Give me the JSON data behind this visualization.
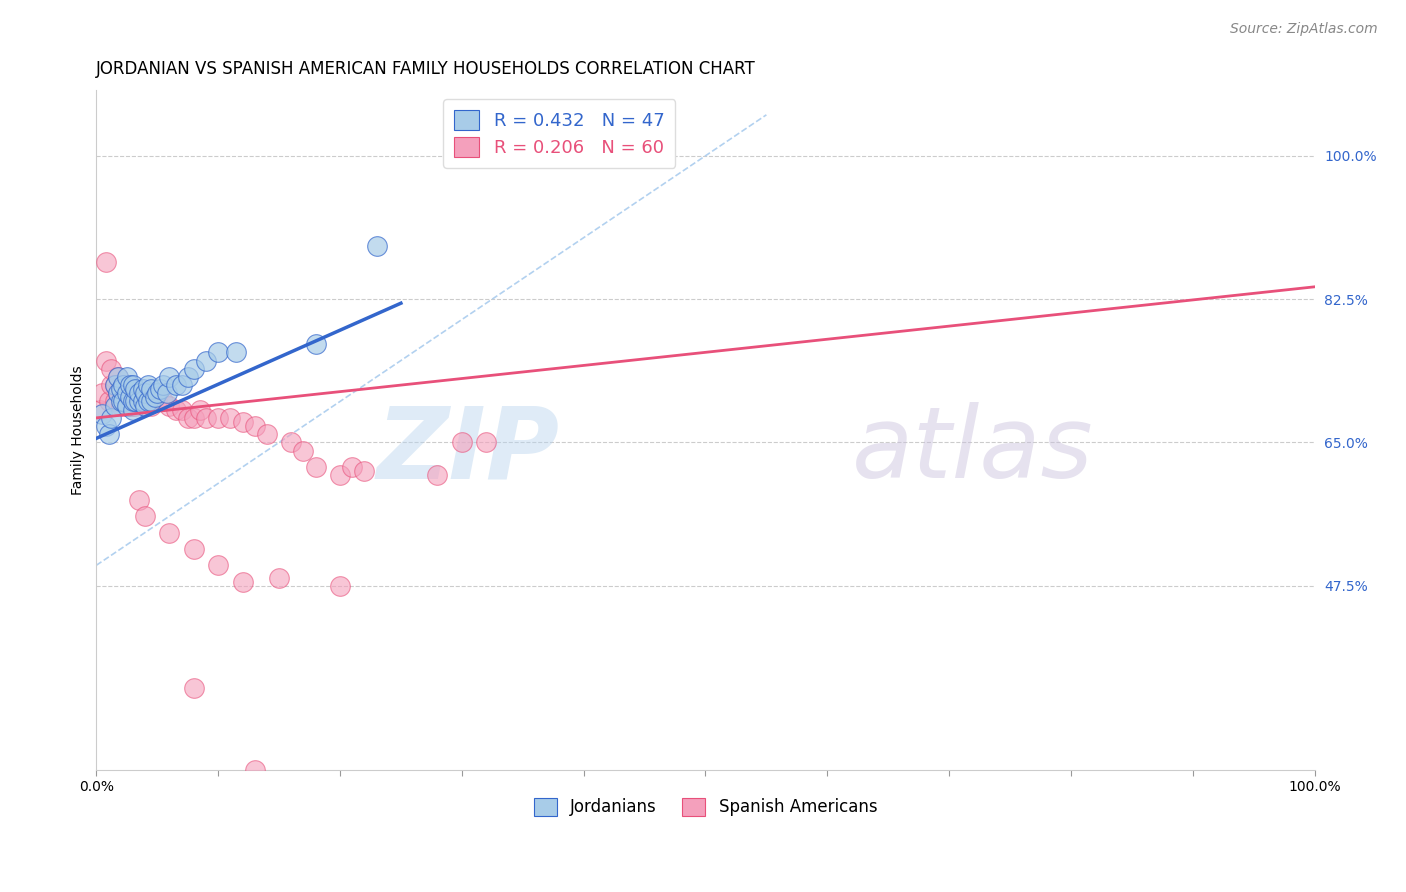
{
  "title": "JORDANIAN VS SPANISH AMERICAN FAMILY HOUSEHOLDS CORRELATION CHART",
  "source": "Source: ZipAtlas.com",
  "ylabel": "Family Households",
  "xlim": [
    0.0,
    1.0
  ],
  "ylim": [
    0.25,
    1.08
  ],
  "yticks": [
    0.475,
    0.65,
    0.825,
    1.0
  ],
  "ytick_labels": [
    "47.5%",
    "65.0%",
    "82.5%",
    "100.0%"
  ],
  "xtick_labels": [
    "0.0%",
    "",
    "",
    "",
    "",
    "",
    "",
    "",
    "",
    "",
    "100.0%"
  ],
  "legend_blue_r": "R = 0.432",
  "legend_blue_n": "N = 47",
  "legend_pink_r": "R = 0.206",
  "legend_pink_n": "N = 60",
  "blue_color": "#a8cce8",
  "pink_color": "#f4a0bc",
  "blue_line_color": "#3366cc",
  "pink_line_color": "#e8507a",
  "diag_line_color": "#aaccee",
  "watermark_zip": "ZIP",
  "watermark_atlas": "atlas",
  "blue_x": [
    0.005,
    0.008,
    0.01,
    0.012,
    0.015,
    0.015,
    0.018,
    0.018,
    0.02,
    0.02,
    0.022,
    0.022,
    0.025,
    0.025,
    0.025,
    0.028,
    0.028,
    0.03,
    0.03,
    0.03,
    0.032,
    0.032,
    0.035,
    0.035,
    0.038,
    0.038,
    0.04,
    0.04,
    0.042,
    0.042,
    0.045,
    0.045,
    0.048,
    0.05,
    0.052,
    0.055,
    0.058,
    0.06,
    0.065,
    0.07,
    0.075,
    0.08,
    0.09,
    0.1,
    0.115,
    0.18,
    0.23
  ],
  "blue_y": [
    0.685,
    0.67,
    0.66,
    0.68,
    0.695,
    0.72,
    0.71,
    0.73,
    0.7,
    0.715,
    0.7,
    0.72,
    0.695,
    0.71,
    0.73,
    0.705,
    0.72,
    0.69,
    0.7,
    0.72,
    0.7,
    0.715,
    0.7,
    0.71,
    0.7,
    0.715,
    0.695,
    0.71,
    0.7,
    0.72,
    0.7,
    0.715,
    0.705,
    0.71,
    0.715,
    0.72,
    0.71,
    0.73,
    0.72,
    0.72,
    0.73,
    0.74,
    0.75,
    0.76,
    0.76,
    0.77,
    0.89
  ],
  "pink_x": [
    0.003,
    0.005,
    0.008,
    0.008,
    0.01,
    0.012,
    0.012,
    0.015,
    0.015,
    0.018,
    0.018,
    0.02,
    0.02,
    0.022,
    0.022,
    0.025,
    0.025,
    0.028,
    0.028,
    0.03,
    0.03,
    0.032,
    0.035,
    0.038,
    0.04,
    0.042,
    0.045,
    0.05,
    0.055,
    0.06,
    0.065,
    0.07,
    0.075,
    0.08,
    0.085,
    0.09,
    0.1,
    0.11,
    0.12,
    0.13,
    0.14,
    0.16,
    0.17,
    0.18,
    0.2,
    0.21,
    0.22,
    0.28,
    0.3,
    0.32,
    0.035,
    0.04,
    0.06,
    0.08,
    0.1,
    0.12,
    0.15,
    0.2,
    0.08,
    0.13
  ],
  "pink_y": [
    0.69,
    0.71,
    0.75,
    0.87,
    0.7,
    0.72,
    0.74,
    0.7,
    0.72,
    0.71,
    0.73,
    0.695,
    0.715,
    0.7,
    0.72,
    0.695,
    0.71,
    0.695,
    0.71,
    0.695,
    0.71,
    0.695,
    0.7,
    0.7,
    0.695,
    0.7,
    0.695,
    0.7,
    0.7,
    0.695,
    0.69,
    0.69,
    0.68,
    0.68,
    0.69,
    0.68,
    0.68,
    0.68,
    0.675,
    0.67,
    0.66,
    0.65,
    0.64,
    0.62,
    0.61,
    0.62,
    0.615,
    0.61,
    0.65,
    0.65,
    0.58,
    0.56,
    0.54,
    0.52,
    0.5,
    0.48,
    0.485,
    0.475,
    0.35,
    0.25
  ],
  "title_fontsize": 12,
  "axis_label_fontsize": 10,
  "tick_fontsize": 10,
  "legend_fontsize": 13,
  "source_fontsize": 10,
  "blue_trend_x0": 0.0,
  "blue_trend_x1": 0.25,
  "blue_trend_y0": 0.655,
  "blue_trend_y1": 0.82,
  "pink_trend_x0": 0.0,
  "pink_trend_x1": 1.0,
  "pink_trend_y0": 0.68,
  "pink_trend_y1": 0.84
}
